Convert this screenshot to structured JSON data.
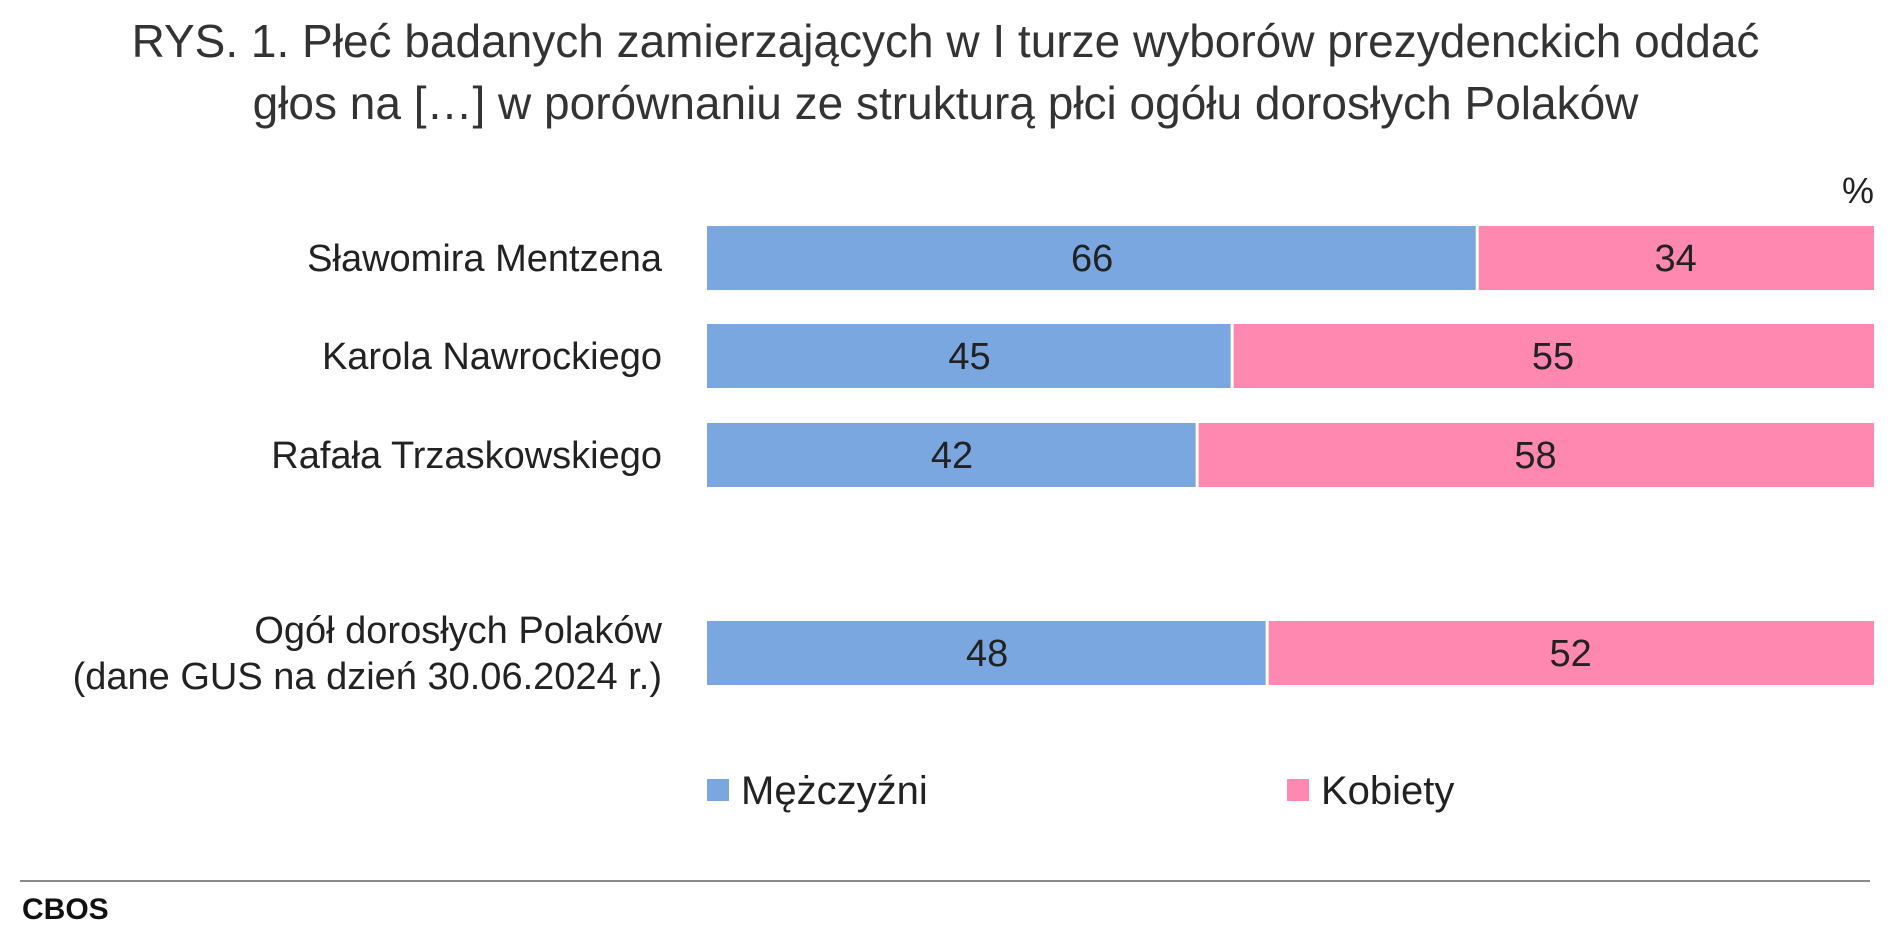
{
  "chart_data": {
    "type": "bar",
    "stacked": true,
    "orientation": "horizontal",
    "title_lines": [
      "RYS. 1. Płeć badanych zamierzających w I turze wyborów prezydenckich oddać",
      "głos na […] w porównaniu ze strukturą płci ogółu dorosłych Polaków"
    ],
    "unit": "%",
    "categories": [
      [
        "Sławomira Mentzena"
      ],
      [
        "Karola Nawrockiego"
      ],
      [
        "Rafała Trzaskowskiego"
      ],
      [
        "Ogół dorosłych Polaków",
        "(dane GUS na dzień 30.06.2024 r.)"
      ]
    ],
    "series": [
      {
        "name": "Mężczyźni",
        "color": "#7ba7e0",
        "values": [
          66,
          45,
          42,
          48
        ]
      },
      {
        "name": "Kobiety",
        "color": "#ff88b1",
        "values": [
          34,
          55,
          58,
          52
        ]
      }
    ],
    "xlim": [
      0,
      100
    ],
    "grid": false,
    "legend": "bottom"
  },
  "source": "CBOS"
}
